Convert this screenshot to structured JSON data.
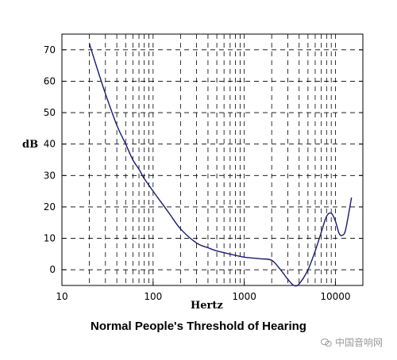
{
  "chart_data": {
    "type": "line",
    "title": "Normal People's Threshold of Hearing",
    "xlabel": "Hertz",
    "ylabel": "dB",
    "xscale": "log",
    "xlim": [
      10,
      20000
    ],
    "ylim": [
      -5,
      75
    ],
    "xticks": [
      10,
      100,
      1000,
      10000
    ],
    "xtick_labels": [
      "10",
      "100",
      "1000",
      "10000"
    ],
    "yticks": [
      0,
      10,
      20,
      30,
      40,
      50,
      60,
      70
    ],
    "ytick_labels": [
      "0",
      "10",
      "20",
      "30",
      "40",
      "50",
      "60",
      "70"
    ],
    "grid": true,
    "line_color": "#1a1a6e",
    "series": [
      {
        "x": [
          20,
          25,
          30,
          40,
          50,
          60,
          70,
          80,
          100,
          150,
          200,
          300,
          400,
          500,
          700,
          1000,
          1500,
          2000,
          2500,
          3000,
          3500,
          4000,
          5000,
          6000,
          7000,
          8000,
          9000,
          10000,
          11000,
          12000,
          13000,
          15000
        ],
        "y": [
          72,
          63,
          56,
          46,
          40,
          35,
          32,
          29,
          25,
          18,
          13,
          8.5,
          7,
          6,
          5,
          4,
          3.5,
          3,
          0,
          -3,
          -5,
          -4.5,
          0,
          6,
          12,
          17,
          18,
          15.5,
          11.5,
          11,
          13,
          23
        ]
      }
    ]
  },
  "footer": {
    "watermark_text": "中国音响网"
  }
}
